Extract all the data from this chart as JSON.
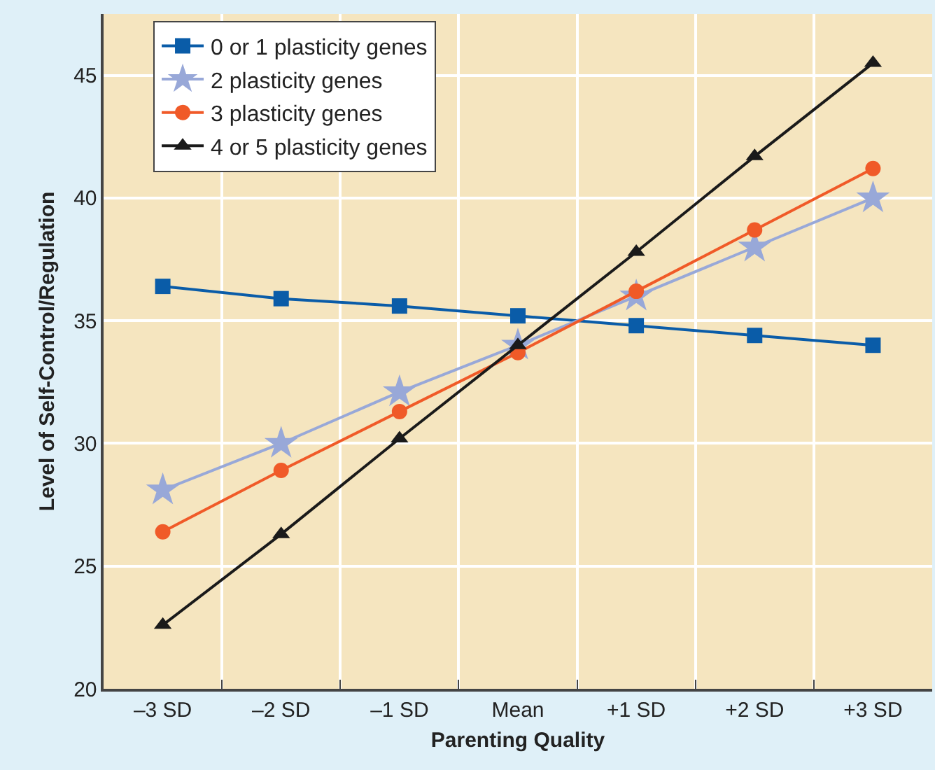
{
  "chart_data": {
    "type": "line",
    "xlabel": "Parenting Quality",
    "ylabel": "Level of Self-Control/Regulation",
    "categories": [
      "–3 SD",
      "–2 SD",
      "–1 SD",
      "Mean",
      "+1 SD",
      "+2 SD",
      "+3 SD"
    ],
    "series": [
      {
        "name": "0 or 1 plasticity genes",
        "color": "#0a5ca8",
        "marker": "square",
        "values": [
          36.4,
          35.9,
          35.6,
          35.2,
          34.8,
          34.4,
          34.0
        ]
      },
      {
        "name": "2 plasticity genes",
        "color": "#98a8d8",
        "marker": "star",
        "values": [
          28.1,
          30.0,
          32.1,
          34.0,
          36.0,
          38.0,
          40.0
        ]
      },
      {
        "name": "3 plasticity genes",
        "color": "#f05a28",
        "marker": "circle",
        "values": [
          26.4,
          28.9,
          31.3,
          33.7,
          36.2,
          38.7,
          41.2
        ]
      },
      {
        "name": "4 or 5 plasticity genes",
        "color": "#1a1a1a",
        "marker": "triangle",
        "values": [
          22.6,
          26.3,
          30.2,
          34.0,
          37.8,
          41.7,
          45.5
        ]
      }
    ],
    "ylim": [
      20,
      47.5
    ],
    "yticks": [
      20,
      25,
      30,
      35,
      40,
      45
    ],
    "grid": true,
    "legend": "top left",
    "line_style": "solid"
  }
}
